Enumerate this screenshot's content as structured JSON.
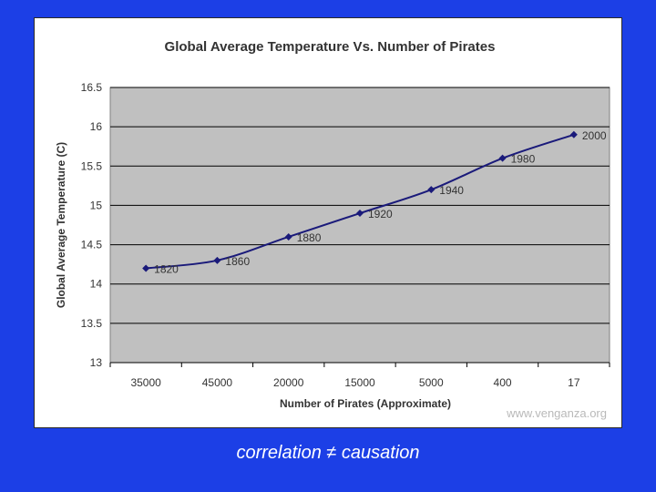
{
  "caption": "correlation ≠ causation",
  "watermark": "www.venganza.org",
  "colors": {
    "background": "#1c3fe6",
    "plot_area": "#c0c0c0",
    "series": "#1a1a7a",
    "gridline": "#000000"
  },
  "chart_data": {
    "type": "line",
    "title": "Global Average Temperature Vs. Number of Pirates",
    "xlabel": "Number of Pirates (Approximate)",
    "ylabel": "Global Average Temperature (C)",
    "categories": [
      "35000",
      "45000",
      "20000",
      "15000",
      "5000",
      "400",
      "17"
    ],
    "series": [
      {
        "name": "Temperature",
        "values": [
          14.2,
          14.3,
          14.6,
          14.9,
          15.2,
          15.6,
          15.9
        ],
        "point_labels": [
          "1820",
          "1860",
          "1880",
          "1920",
          "1940",
          "1980",
          "2000"
        ]
      }
    ],
    "ylim": [
      13,
      16.5
    ],
    "yticks": [
      "13",
      "13.5",
      "14",
      "14.5",
      "15",
      "15.5",
      "16",
      "16.5"
    ],
    "grid": true
  }
}
